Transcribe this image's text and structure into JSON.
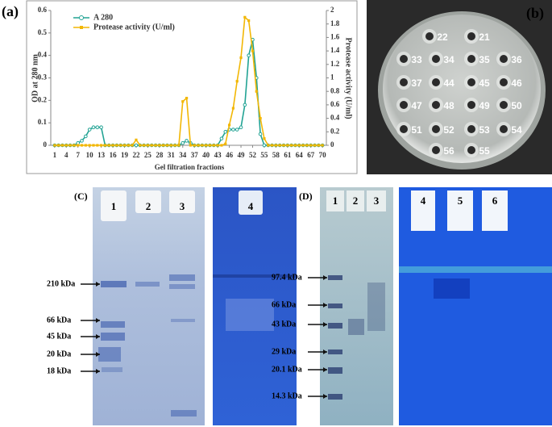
{
  "chart_data": {
    "type": "line",
    "panel_label": "(a)",
    "xlabel": "Gel filtration fractions",
    "ylabel": "OD at 280 nm",
    "y2label": "Protease activity (U/ml)",
    "x": [
      1,
      2,
      3,
      4,
      5,
      6,
      7,
      8,
      9,
      10,
      11,
      12,
      13,
      14,
      15,
      16,
      17,
      18,
      19,
      20,
      21,
      22,
      23,
      24,
      25,
      26,
      27,
      28,
      29,
      30,
      31,
      32,
      33,
      34,
      35,
      36,
      37,
      38,
      39,
      40,
      41,
      42,
      43,
      44,
      45,
      46,
      47,
      48,
      49,
      50,
      51,
      52,
      53,
      54,
      55,
      56,
      57,
      58,
      59,
      60,
      61,
      62,
      63,
      64,
      65,
      66,
      67,
      68,
      69,
      70
    ],
    "series": [
      {
        "name": "A 280",
        "color": "#22a394",
        "marker": "circle",
        "values": [
          0,
          0,
          0,
          0,
          0,
          0,
          0.01,
          0.02,
          0.04,
          0.07,
          0.08,
          0.08,
          0.08,
          0,
          0,
          0,
          0,
          0,
          0,
          0,
          0,
          0,
          0,
          0,
          0,
          0,
          0,
          0,
          0,
          0,
          0,
          0,
          0,
          0.01,
          0.02,
          0.01,
          0,
          0,
          0,
          0,
          0,
          0,
          0,
          0.03,
          0.06,
          0.07,
          0.07,
          0.07,
          0.08,
          0.18,
          0.4,
          0.47,
          0.3,
          0.05,
          0,
          0,
          0,
          0,
          0,
          0,
          0,
          0,
          0,
          0,
          0,
          0,
          0,
          0,
          0,
          0
        ]
      },
      {
        "name": "Protease activity (U/ml)",
        "color": "#f2b705",
        "marker": "square",
        "axis": "y2",
        "values": [
          0,
          0,
          0,
          0,
          0,
          0,
          0,
          0,
          0,
          0,
          0,
          0,
          0,
          0,
          0,
          0,
          0,
          0,
          0,
          0,
          0,
          0.08,
          0,
          0,
          0,
          0,
          0,
          0,
          0,
          0,
          0,
          0,
          0,
          0.65,
          0.7,
          0,
          0,
          0,
          0,
          0,
          0,
          0,
          0,
          0,
          0.02,
          0.3,
          0.55,
          0.95,
          1.3,
          1.9,
          1.85,
          1.4,
          0.8,
          0.4,
          0.1,
          0,
          0,
          0,
          0,
          0,
          0,
          0,
          0,
          0,
          0,
          0,
          0,
          0,
          0,
          0
        ]
      }
    ],
    "xlim": [
      0,
      71
    ],
    "xticks": [
      1,
      4,
      7,
      10,
      13,
      16,
      19,
      22,
      25,
      28,
      31,
      34,
      37,
      40,
      43,
      46,
      49,
      52,
      55,
      58,
      61,
      64,
      67,
      70
    ],
    "ylim": [
      0,
      0.6
    ],
    "yticks": [
      0,
      0.1,
      0.2,
      0.3,
      0.4,
      0.5,
      0.6
    ],
    "y2lim": [
      0,
      2
    ],
    "y2ticks": [
      0,
      0.2,
      0.4,
      0.6,
      0.8,
      1,
      1.2,
      1.4,
      1.6,
      1.8,
      2
    ],
    "legend": "top-left",
    "grid": false
  },
  "plate": {
    "panel_label": "(b)",
    "wells": [
      "22",
      "21",
      "33",
      "34",
      "35",
      "36",
      "37",
      "44",
      "45",
      "46",
      "47",
      "48",
      "49",
      "50",
      "51",
      "52",
      "53",
      "54",
      "56",
      "55"
    ]
  },
  "gel_c": {
    "panel_label": "(C)",
    "lanes": [
      "1",
      "2",
      "3",
      "4"
    ],
    "markers": [
      "210 kDa",
      "66 kDa",
      "45 kDa",
      "20 kDa",
      "18 kDa"
    ]
  },
  "gel_d": {
    "panel_label": "(D)",
    "lanes": [
      "1",
      "2",
      "3",
      "4",
      "5",
      "6"
    ],
    "markers": [
      "97.4 kDa",
      "66 kDa",
      "43 kDa",
      "29 kDa",
      "20.1 kDa",
      "14.3  kDa"
    ]
  }
}
